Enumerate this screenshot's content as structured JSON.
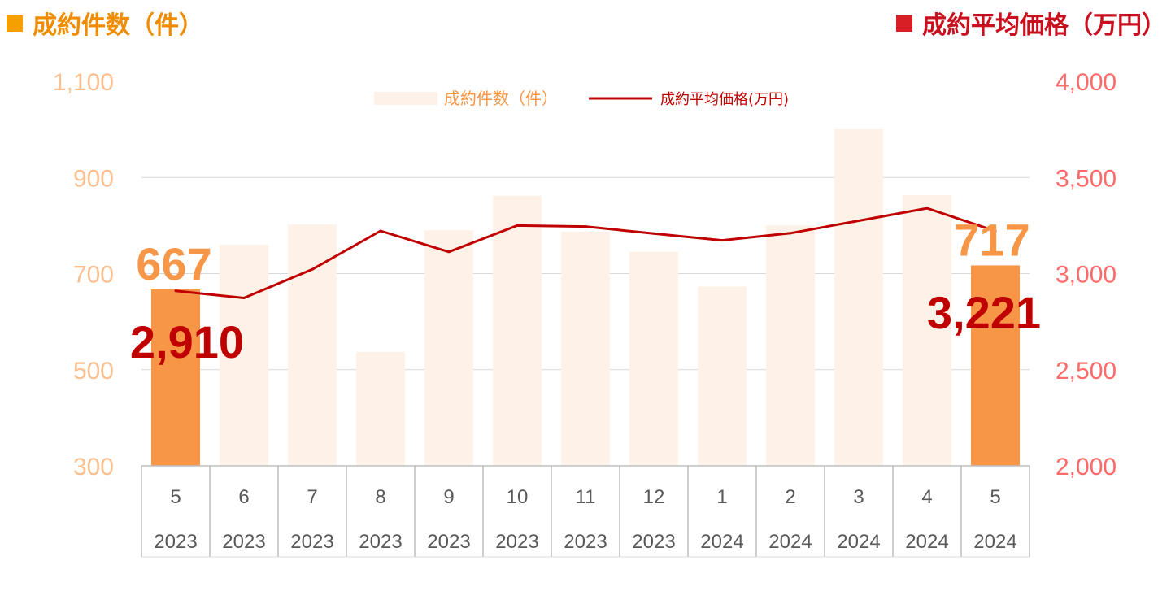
{
  "headers": {
    "left": "成約件数（件）",
    "right": "成約平均価格（万円）",
    "left_color": "#f5a000",
    "right_color": "#d91f26"
  },
  "chart_data": {
    "type": "bar",
    "categories": [
      [
        "5",
        "2023"
      ],
      [
        "6",
        "2023"
      ],
      [
        "7",
        "2023"
      ],
      [
        "8",
        "2023"
      ],
      [
        "9",
        "2023"
      ],
      [
        "10",
        "2023"
      ],
      [
        "11",
        "2023"
      ],
      [
        "12",
        "2023"
      ],
      [
        "1",
        "2024"
      ],
      [
        "2",
        "2024"
      ],
      [
        "3",
        "2024"
      ],
      [
        "4",
        "2024"
      ],
      [
        "5",
        "2024"
      ]
    ],
    "series": [
      {
        "name": "成約件数（件）",
        "type": "bar",
        "axis": "left",
        "values": [
          667,
          760,
          802,
          537,
          790,
          862,
          787,
          745,
          673,
          800,
          1000,
          863,
          717
        ],
        "color": "#fdf1e8",
        "highlight_color": "#f79646",
        "highlight_indices": [
          0,
          12
        ]
      },
      {
        "name": "成約平均価格(万円)",
        "type": "line",
        "axis": "right",
        "values": [
          2910,
          2873,
          3022,
          3222,
          3113,
          3250,
          3245,
          3208,
          3173,
          3210,
          3275,
          3340,
          3221
        ],
        "color": "#c00000"
      }
    ],
    "y_left": {
      "min": 300,
      "max": 1100,
      "ticks": [
        "300",
        "500",
        "700",
        "900",
        "1,100"
      ],
      "color": "#fac090"
    },
    "y_right": {
      "min": 2000,
      "max": 4000,
      "ticks": [
        "2,000",
        "2,500",
        "3,000",
        "3,500",
        "4,000"
      ],
      "color": "#ff6b6b"
    },
    "grid": true,
    "legend_position": "top-center",
    "annotations": [
      {
        "text": "667",
        "series": 0,
        "index": 0,
        "color": "#f79646"
      },
      {
        "text": "2,910",
        "series": 1,
        "index": 0,
        "color": "#c00000"
      },
      {
        "text": "717",
        "series": 0,
        "index": 12,
        "color": "#f79646"
      },
      {
        "text": "3,221",
        "series": 1,
        "index": 12,
        "color": "#c00000"
      }
    ]
  }
}
